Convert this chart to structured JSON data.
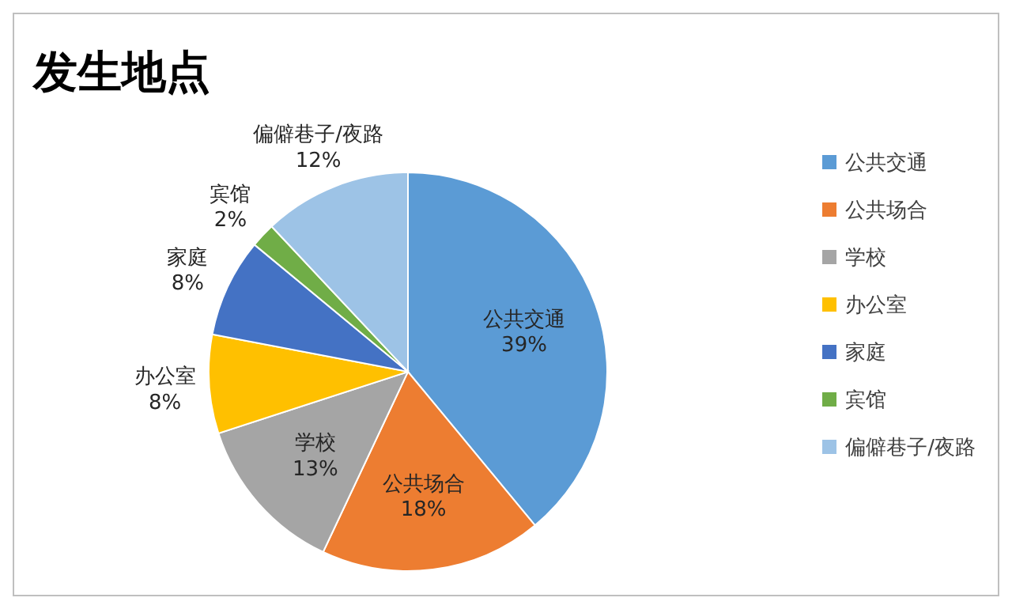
{
  "chart_data": {
    "type": "pie",
    "title": "发生地点",
    "categories": [
      "公共交通",
      "公共场合",
      "学校",
      "办公室",
      "家庭",
      "宾馆",
      "偏僻巷子/夜路"
    ],
    "values": [
      39,
      18,
      13,
      8,
      8,
      2,
      12
    ],
    "value_labels": [
      "39%",
      "18%",
      "13%",
      "8%",
      "8%",
      "2%",
      "12%"
    ],
    "colors": [
      "#5b9bd5",
      "#ed7d31",
      "#a5a5a5",
      "#ffc000",
      "#4472c4",
      "#70ad47",
      "#9dc3e6"
    ],
    "legend": "right"
  }
}
